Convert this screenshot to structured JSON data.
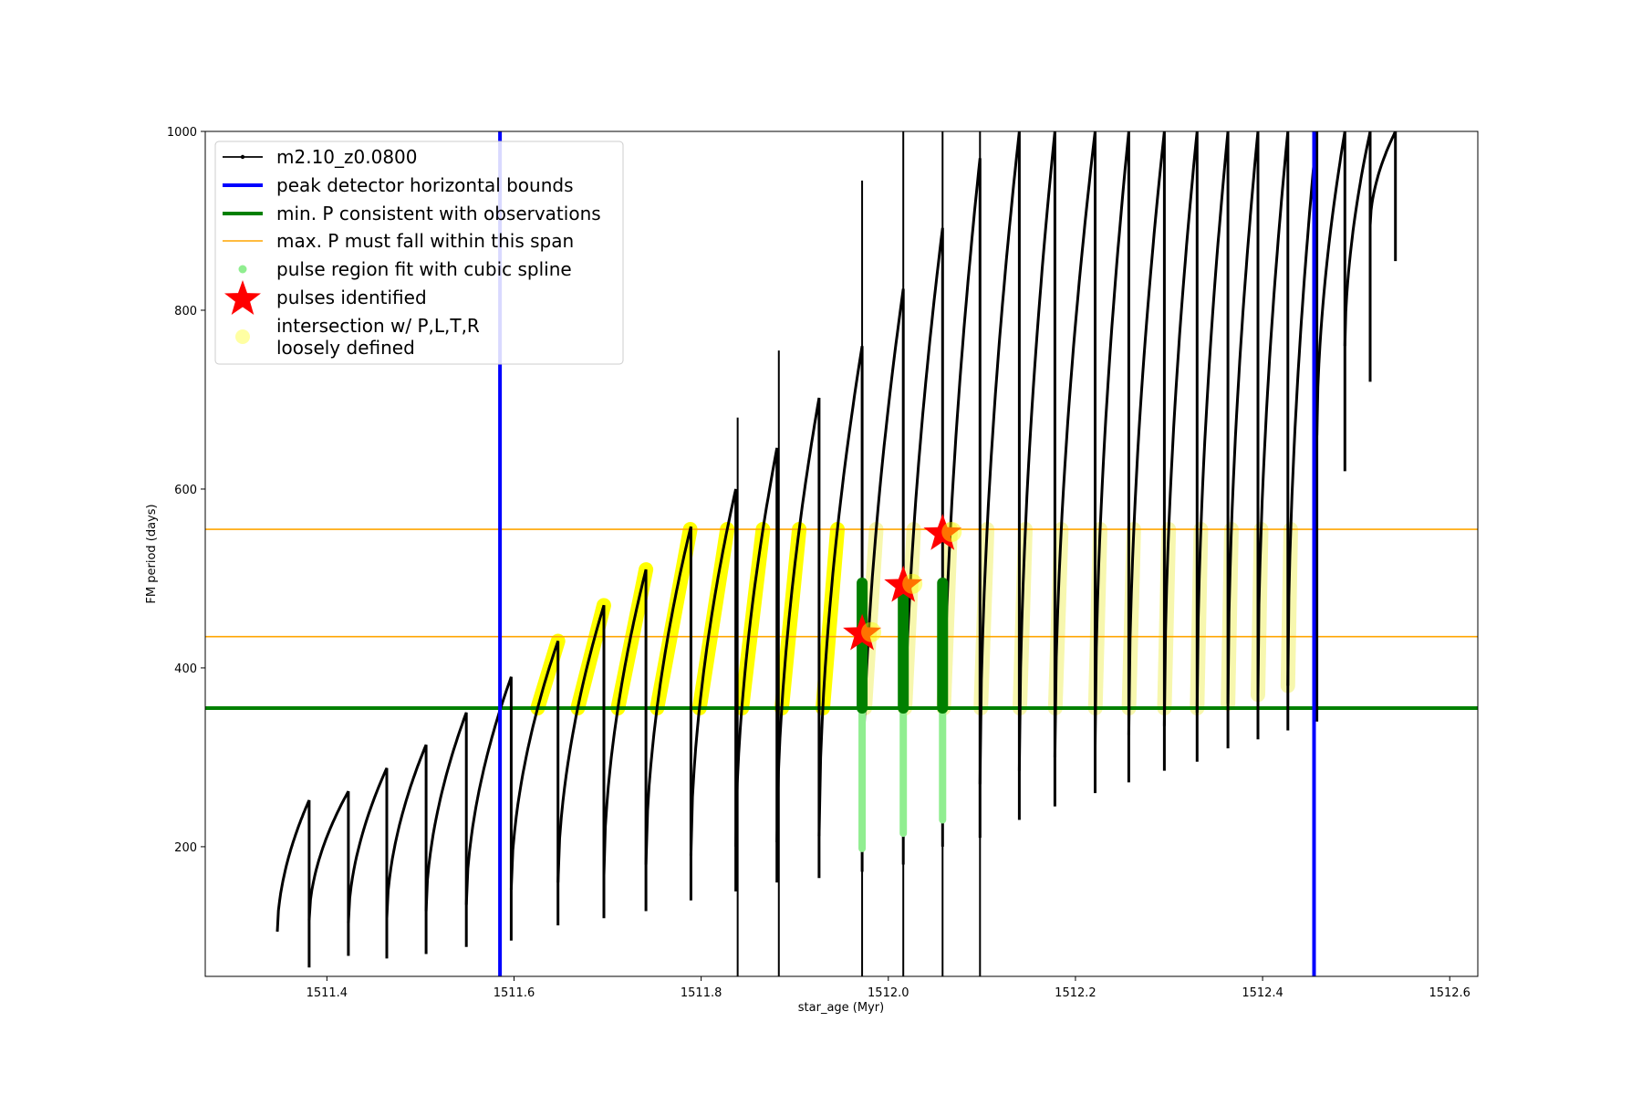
{
  "chart_data": {
    "type": "line",
    "xlabel": "star_age (Myr)",
    "ylabel": "FM period (days)",
    "xlim": [
      1511.27,
      1512.63
    ],
    "ylim": [
      55,
      1000
    ],
    "xticks": [
      1511.4,
      1511.6,
      1511.8,
      1512.0,
      1512.2,
      1512.4,
      1512.6
    ],
    "xtick_labels": [
      "1511.4",
      "1511.6",
      "1511.8",
      "1512.0",
      "1512.2",
      "1512.4",
      "1512.6"
    ],
    "yticks": [
      200,
      400,
      600,
      800,
      1000
    ],
    "ytick_labels": [
      "200",
      "400",
      "600",
      "800",
      "1000"
    ],
    "legend_position": "upper-left",
    "colors": {
      "model": "#000000",
      "peak_bounds": "#0000ff",
      "min_p": "#008000",
      "max_p_span": "#ffa500",
      "spline": "#90ee90",
      "star": "#ff0000",
      "loose": "#ffff00",
      "pulse_fill": "#008000"
    },
    "legend": [
      {
        "label": "m2.10_z0.0800",
        "marker": "line-dot",
        "color": "#000000"
      },
      {
        "label": "peak detector horizontal bounds",
        "marker": "thick-line",
        "color": "#0000ff"
      },
      {
        "label": "min. P consistent with observations",
        "marker": "thick-line",
        "color": "#008000"
      },
      {
        "label": "max. P must fall within this span",
        "marker": "thin-line",
        "color": "#ffa500"
      },
      {
        "label": "pulse region fit with cubic spline",
        "marker": "dot",
        "color": "#90ee90"
      },
      {
        "label": "pulses identified",
        "marker": "star",
        "color": "#ff0000"
      },
      {
        "label": "intersection w/ P,L,T,R",
        "label2": "loosely defined",
        "marker": "circle",
        "color": "#ffff99"
      }
    ],
    "peak_detector_bounds_x": [
      1511.585,
      1512.455
    ],
    "min_p_y": 355,
    "max_p_span_y": [
      435,
      555
    ],
    "cycles": [
      {
        "start": 1511.347,
        "peak": 252,
        "crash": 1511.381,
        "min": 65
      },
      {
        "start": 1511.381,
        "peak": 262,
        "crash": 1511.423,
        "min": 78
      },
      {
        "start": 1511.423,
        "peak": 288,
        "crash": 1511.464,
        "min": 75
      },
      {
        "start": 1511.464,
        "peak": 314,
        "crash": 1511.506,
        "min": 80
      },
      {
        "start": 1511.506,
        "peak": 350,
        "crash": 1511.549,
        "min": 88
      },
      {
        "start": 1511.549,
        "peak": 390,
        "crash": 1511.597,
        "min": 95
      },
      {
        "start": 1511.597,
        "peak": 430,
        "crash": 1511.647,
        "min": 112
      },
      {
        "start": 1511.647,
        "peak": 470,
        "crash": 1511.696,
        "min": 120
      },
      {
        "start": 1511.696,
        "peak": 510,
        "crash": 1511.741,
        "min": 128
      },
      {
        "start": 1511.741,
        "peak": 558,
        "crash": 1511.789,
        "min": 140
      },
      {
        "start": 1511.789,
        "peak": 600,
        "crash": 1511.837,
        "min": 150
      },
      {
        "start": 1511.837,
        "peak": 646,
        "crash": 1511.881,
        "min": 160
      },
      {
        "start": 1511.881,
        "peak": 702,
        "crash": 1511.926,
        "min": 165
      },
      {
        "start": 1511.926,
        "peak": 760,
        "crash": 1511.972,
        "min": 172
      },
      {
        "start": 1511.972,
        "peak": 824,
        "crash": 1512.016,
        "min": 180
      },
      {
        "start": 1512.016,
        "peak": 892,
        "crash": 1512.058,
        "min": 200
      },
      {
        "start": 1512.058,
        "peak": 970,
        "crash": 1512.098,
        "min": 210
      },
      {
        "start": 1512.098,
        "peak": 1000,
        "crash": 1512.14,
        "min": 230
      },
      {
        "start": 1512.14,
        "peak": 1000,
        "crash": 1512.178,
        "min": 245
      },
      {
        "start": 1512.178,
        "peak": 1000,
        "crash": 1512.221,
        "min": 260
      },
      {
        "start": 1512.221,
        "peak": 1000,
        "crash": 1512.257,
        "min": 272
      },
      {
        "start": 1512.257,
        "peak": 1000,
        "crash": 1512.295,
        "min": 285
      },
      {
        "start": 1512.295,
        "peak": 1000,
        "crash": 1512.33,
        "min": 295
      },
      {
        "start": 1512.33,
        "peak": 1000,
        "crash": 1512.363,
        "min": 310
      },
      {
        "start": 1512.363,
        "peak": 1000,
        "crash": 1512.395,
        "min": 320
      },
      {
        "start": 1512.395,
        "peak": 1000,
        "crash": 1512.427,
        "min": 330
      },
      {
        "start": 1512.427,
        "peak": 1000,
        "crash": 1512.458,
        "min": 340
      },
      {
        "start": 1512.458,
        "peak": 1000,
        "crash": 1512.488,
        "min": 620
      },
      {
        "start": 1512.488,
        "peak": 1000,
        "crash": 1512.515,
        "min": 720
      },
      {
        "start": 1512.515,
        "peak": 1000,
        "crash": 1512.542,
        "min": 855
      }
    ],
    "spikes": [
      {
        "x": 1511.839,
        "y": 680
      },
      {
        "x": 1511.883,
        "y": 755
      },
      {
        "x": 1511.972,
        "y": 945
      },
      {
        "x": 1512.016,
        "y": 1000
      },
      {
        "x": 1512.058,
        "y": 1000
      },
      {
        "x": 1512.098,
        "y": 1000
      }
    ],
    "pulses_identified": [
      {
        "x": 1511.972,
        "y": 438
      },
      {
        "x": 1512.016,
        "y": 492
      },
      {
        "x": 1512.058,
        "y": 550
      }
    ],
    "pulse_regions": [
      {
        "x": 1511.972,
        "ymin": 355,
        "ymax": 495
      },
      {
        "x": 1512.016,
        "ymin": 355,
        "ymax": 495
      },
      {
        "x": 1512.058,
        "ymin": 355,
        "ymax": 495
      }
    ],
    "spline_regions": [
      {
        "x": 1511.972,
        "ymin": 198,
        "ymax": 495
      },
      {
        "x": 1512.016,
        "ymin": 215,
        "ymax": 495
      },
      {
        "x": 1512.058,
        "ymin": 230,
        "ymax": 495
      }
    ]
  }
}
